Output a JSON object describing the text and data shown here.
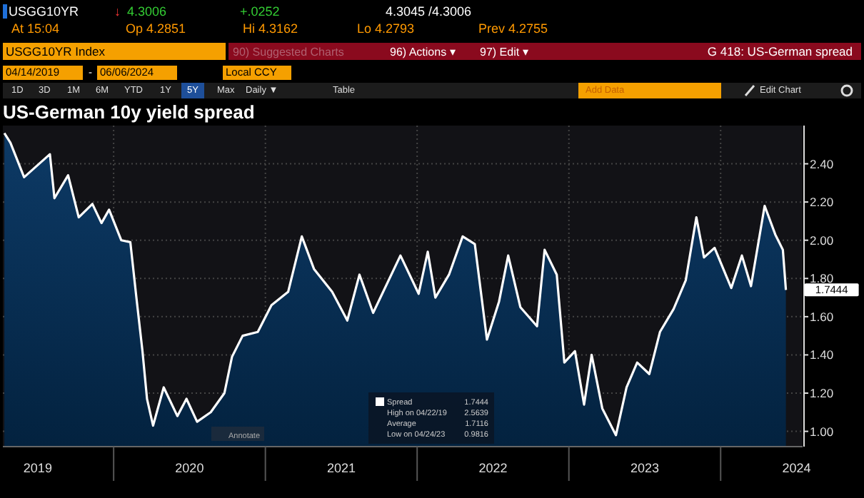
{
  "chart_data": {
    "type": "area",
    "title": "US-German 10y yield spread",
    "x": [
      2019.28,
      2019.32,
      2019.41,
      2019.58,
      2019.61,
      2019.7,
      2019.77,
      2019.86,
      2019.92,
      2019.97,
      2020.05,
      2020.11,
      2020.15,
      2020.19,
      2020.22,
      2020.26,
      2020.33,
      2020.42,
      2020.48,
      2020.55,
      2020.64,
      2020.73,
      2020.78,
      2020.85,
      2020.95,
      2021.04,
      2021.15,
      2021.24,
      2021.32,
      2021.44,
      2021.54,
      2021.62,
      2021.71,
      2021.89,
      2022.01,
      2022.07,
      2022.12,
      2022.21,
      2022.3,
      2022.38,
      2022.46,
      2022.54,
      2022.6,
      2022.68,
      2022.79,
      2022.84,
      2022.92,
      2022.97,
      2023.04,
      2023.1,
      2023.15,
      2023.22,
      2023.31,
      2023.38,
      2023.45,
      2023.53,
      2023.6,
      2023.69,
      2023.77,
      2023.84,
      2023.89,
      2023.96,
      2024.07,
      2024.14,
      2024.2,
      2024.29,
      2024.36,
      2024.41,
      2024.43
    ],
    "series": [
      {
        "name": "Spread",
        "color": "#ffffff",
        "values": [
          2.56,
          2.51,
          2.33,
          2.45,
          2.22,
          2.34,
          2.12,
          2.19,
          2.09,
          2.16,
          2.0,
          1.99,
          1.7,
          1.42,
          1.17,
          1.03,
          1.23,
          1.08,
          1.17,
          1.05,
          1.1,
          1.2,
          1.39,
          1.5,
          1.52,
          1.66,
          1.73,
          2.02,
          1.85,
          1.73,
          1.58,
          1.82,
          1.62,
          1.92,
          1.72,
          1.94,
          1.7,
          1.82,
          2.02,
          1.98,
          1.48,
          1.68,
          1.92,
          1.65,
          1.55,
          1.95,
          1.82,
          1.36,
          1.42,
          1.14,
          1.4,
          1.12,
          0.98,
          1.23,
          1.36,
          1.3,
          1.52,
          1.64,
          1.79,
          2.12,
          1.91,
          1.96,
          1.75,
          1.92,
          1.76,
          2.18,
          2.03,
          1.95,
          1.74
        ]
      }
    ],
    "xlim": [
      2019.27,
      2024.54
    ],
    "xticks": [
      {
        "value": 2019.5,
        "label": "2019"
      },
      {
        "value": 2020,
        "label": null
      },
      {
        "value": 2020.5,
        "label": "2020"
      },
      {
        "value": 2021,
        "label": null
      },
      {
        "value": 2021.5,
        "label": "2021"
      },
      {
        "value": 2022,
        "label": null
      },
      {
        "value": 2022.5,
        "label": "2022"
      },
      {
        "value": 2023,
        "label": null
      },
      {
        "value": 2023.5,
        "label": "2023"
      },
      {
        "value": 2024,
        "label": null
      },
      {
        "value": 2024.5,
        "label": "2024"
      }
    ],
    "ylim": [
      0.92,
      2.6
    ],
    "yticks": [
      {
        "value": 1,
        "label": "1.00"
      },
      {
        "value": 1.2,
        "label": "1.20"
      },
      {
        "value": 1.4,
        "label": "1.40"
      },
      {
        "value": 1.6,
        "label": "1.60"
      },
      {
        "value": 1.8,
        "label": "1.80"
      },
      {
        "value": 2,
        "label": "2.00"
      },
      {
        "value": 2.2,
        "label": "2.20"
      },
      {
        "value": 2.4,
        "label": "2.40"
      }
    ],
    "grid": true,
    "legend": "bottom",
    "annotations": [
      "USGG10YR",
      "↓",
      "4.3006",
      "+.0252",
      "4.3045 /4.3006",
      "At 15:04",
      "Op 4.2851",
      "Hi 4.3162",
      "Lo 4.2793",
      "Prev 4.2755",
      "USGG10YR Index",
      "90) Suggested Charts",
      "96) Actions ▾",
      "97) Edit ▾",
      "G 418: US-German spread",
      "04/14/2019",
      "-",
      "06/06/2024",
      "Local CCY",
      "1D",
      "3D",
      "1M",
      "6M",
      "YTD",
      "1Y",
      "5Y",
      "Max",
      "Daily ▼",
      "Table",
      "Add Data",
      "Edit Chart",
      "High on 04/22/19",
      "2.5639",
      "Average",
      "1.7116",
      "Low on 04/24/23",
      "0.9816",
      "1.7444",
      "Annotate",
      {
        "text": "1.7444",
        "x": 2024.43,
        "y": 1.7444
      }
    ]
  }
}
